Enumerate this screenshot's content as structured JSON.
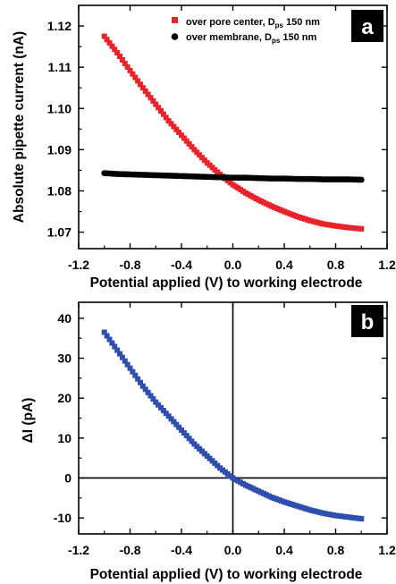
{
  "chart_data": [
    {
      "panel": "a",
      "type": "scatter",
      "xlabel": "Potential applied (V) to working electrode",
      "ylabel": "Absolute pipette current (nA)",
      "xlim": [
        -1.2,
        1.2
      ],
      "ylim": [
        1.066,
        1.125
      ],
      "xticks": [
        "-1.2",
        "-0.8",
        "-0.4",
        "0.0",
        "0.4",
        "0.8",
        "1.2"
      ],
      "yticks": [
        "1.07",
        "1.08",
        "1.09",
        "1.10",
        "1.11",
        "1.12"
      ],
      "legend_position": "top",
      "series": [
        {
          "label_main": "over pore center, D",
          "label_sub": "ps",
          "label_tail": " 150 nm",
          "color": "#e8232a",
          "marker": "square",
          "x": [
            -1.0,
            -0.9,
            -0.8,
            -0.7,
            -0.6,
            -0.5,
            -0.4,
            -0.3,
            -0.2,
            -0.1,
            0.0,
            0.1,
            0.2,
            0.3,
            0.4,
            0.5,
            0.6,
            0.7,
            0.8,
            0.9,
            1.0
          ],
          "y": [
            1.1175,
            1.1135,
            1.1092,
            1.105,
            1.101,
            1.097,
            1.0935,
            1.09,
            1.0868,
            1.084,
            1.0815,
            1.0795,
            1.0778,
            1.0763,
            1.075,
            1.0738,
            1.0728,
            1.072,
            1.0715,
            1.0711,
            1.0708
          ]
        },
        {
          "label_main": "over membrane, D",
          "label_sub": "ps",
          "label_tail": " 150 nm",
          "color": "#000000",
          "marker": "circle",
          "x": [
            -1.0,
            -0.9,
            -0.8,
            -0.7,
            -0.6,
            -0.5,
            -0.4,
            -0.3,
            -0.2,
            -0.1,
            0.0,
            0.1,
            0.2,
            0.3,
            0.4,
            0.5,
            0.6,
            0.7,
            0.8,
            0.9,
            1.0
          ],
          "y": [
            1.0843,
            1.0841,
            1.084,
            1.0839,
            1.0838,
            1.0837,
            1.0836,
            1.0835,
            1.0834,
            1.0833,
            1.0832,
            1.0832,
            1.0831,
            1.083,
            1.083,
            1.0829,
            1.0829,
            1.0828,
            1.0828,
            1.0828,
            1.0827
          ]
        }
      ]
    },
    {
      "panel": "b",
      "type": "scatter",
      "xlabel": "Potential applied (V) to working electrode",
      "ylabel": "ΔI (pA)",
      "xlim": [
        -1.2,
        1.2
      ],
      "ylim": [
        -14,
        44
      ],
      "xticks": [
        "-1.2",
        "-0.8",
        "-0.4",
        "0.0",
        "0.4",
        "0.8",
        "1.2"
      ],
      "yticks": [
        "-10",
        "0",
        "10",
        "20",
        "30",
        "40"
      ],
      "reference_lines": {
        "x": 0,
        "y": 0
      },
      "series": [
        {
          "color": "#2e4fae",
          "marker": "square",
          "x": [
            -1.0,
            -0.9,
            -0.8,
            -0.7,
            -0.6,
            -0.5,
            -0.4,
            -0.3,
            -0.2,
            -0.1,
            0.0,
            0.1,
            0.2,
            0.3,
            0.4,
            0.5,
            0.6,
            0.7,
            0.8,
            0.9,
            1.0
          ],
          "y": [
            36.5,
            32.0,
            27.5,
            23.0,
            19.0,
            15.5,
            12.0,
            8.5,
            5.5,
            2.5,
            0.0,
            -1.8,
            -3.3,
            -4.8,
            -6.0,
            -7.0,
            -8.0,
            -8.8,
            -9.4,
            -9.8,
            -10.2
          ]
        }
      ]
    }
  ]
}
